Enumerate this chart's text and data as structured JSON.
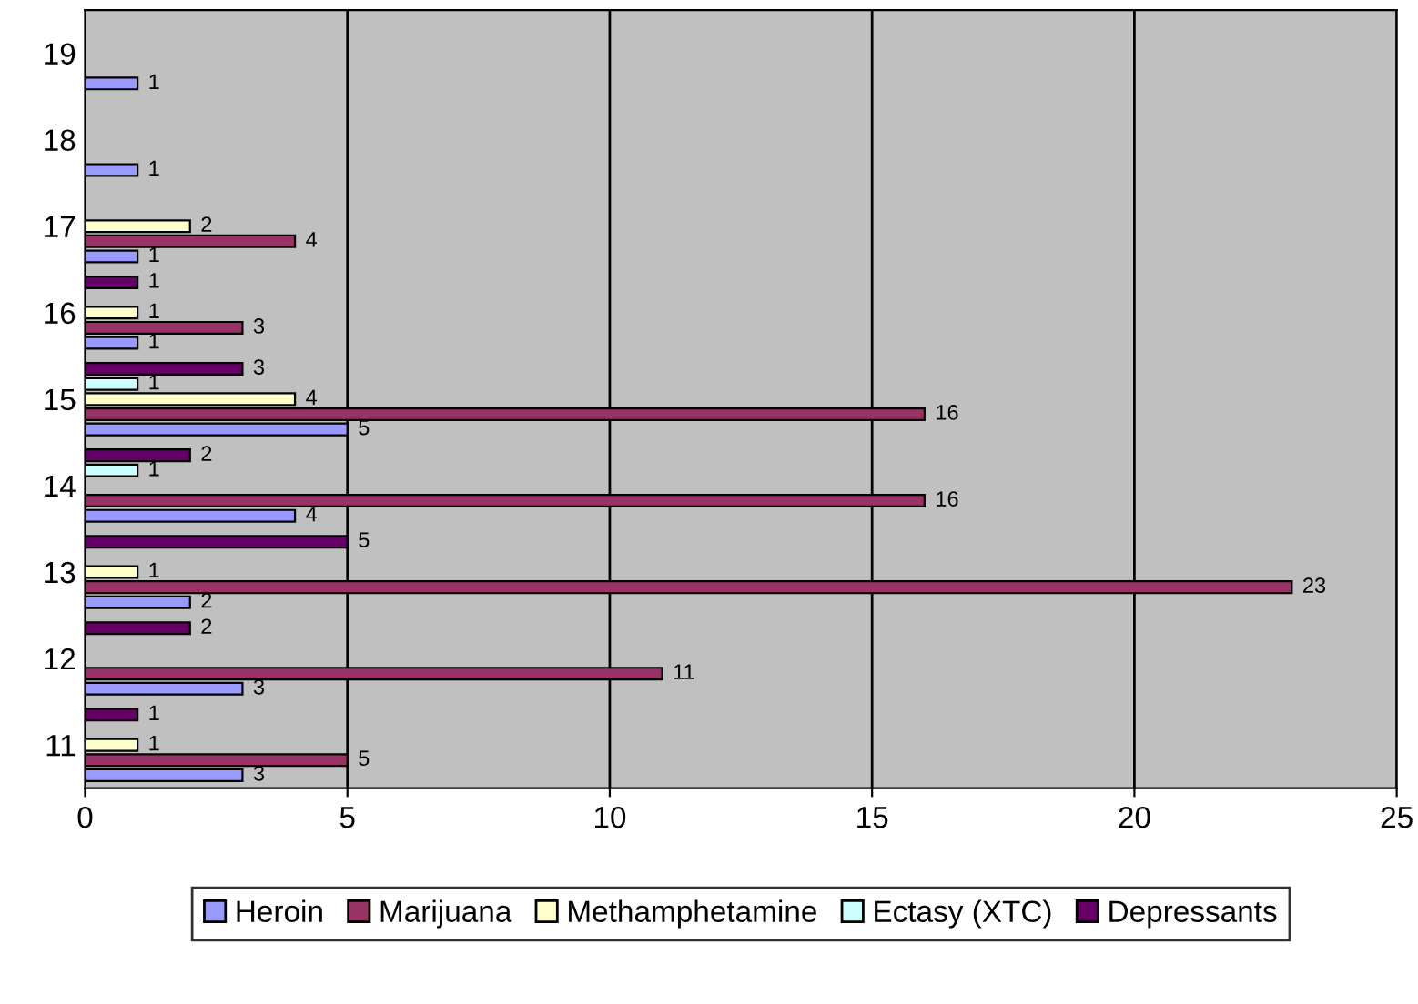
{
  "chart_data": {
    "type": "bar",
    "orientation": "horizontal",
    "categories": [
      "19",
      "18",
      "17",
      "16",
      "15",
      "14",
      "13",
      "12",
      "11"
    ],
    "series": [
      {
        "name": "Heroin",
        "color": "#9999ff",
        "values": [
          1,
          1,
          1,
          1,
          5,
          4,
          2,
          3,
          3
        ]
      },
      {
        "name": "Marijuana",
        "color": "#993366",
        "values": [
          null,
          null,
          4,
          3,
          16,
          16,
          23,
          11,
          5
        ]
      },
      {
        "name": "Methamphetamine",
        "color": "#ffffcc",
        "values": [
          null,
          null,
          2,
          1,
          4,
          null,
          1,
          null,
          1
        ]
      },
      {
        "name": "Ectasy (XTC)",
        "color": "#ccffff",
        "values": [
          null,
          null,
          null,
          null,
          1,
          1,
          null,
          null,
          null
        ]
      },
      {
        "name": "Depressants",
        "color": "#660066",
        "values": [
          null,
          null,
          null,
          1,
          3,
          2,
          5,
          2,
          1
        ]
      }
    ],
    "xlim": [
      0,
      25
    ],
    "xticks": [
      0,
      5,
      10,
      15,
      20,
      25
    ],
    "grid": "x",
    "legend": "bottom",
    "data_labels": true
  }
}
